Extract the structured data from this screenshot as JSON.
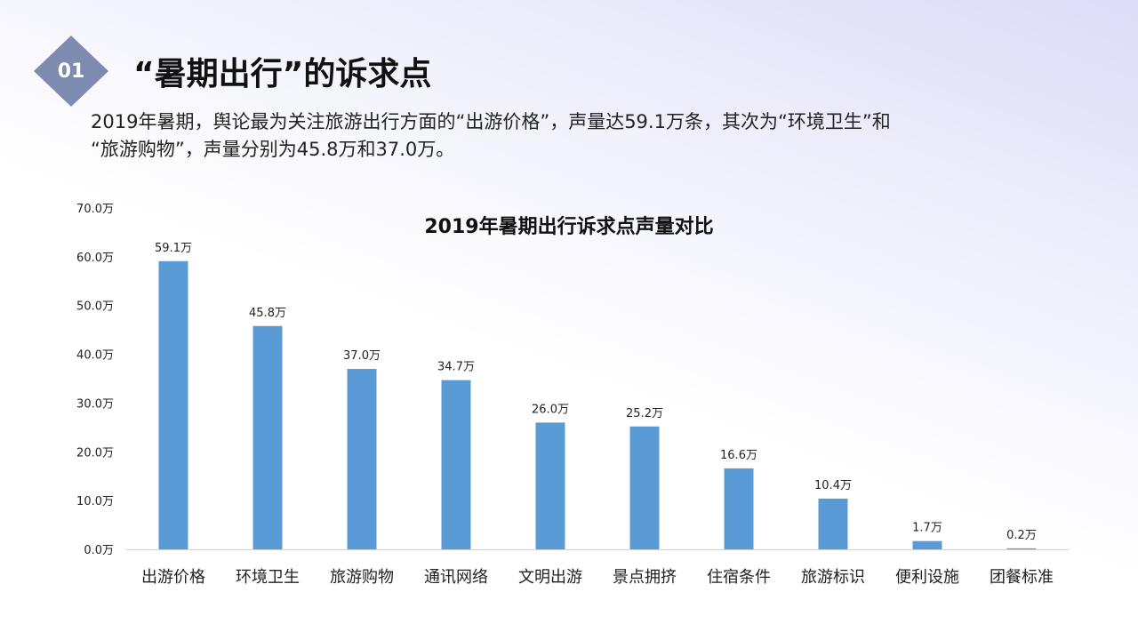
{
  "header": {
    "badge": "01",
    "title": "“暑期出行”的诉求点",
    "description_line1": "2019年暑期，舆论最为关注旅游出行方面的“出游价格”，声量达59.1万条，其次为“环境卫生”和",
    "description_line2": "“旅游购物”，声量分别为45.8万和37.0万。"
  },
  "colors": {
    "bar": "#5b9bd5",
    "badge": "#7d8bb0"
  },
  "chart_data": {
    "type": "bar",
    "title": "2019年暑期出行诉求点声量对比",
    "categories": [
      "出游价格",
      "环境卫生",
      "旅游购物",
      "通讯网络",
      "文明出游",
      "景点拥挤",
      "住宿条件",
      "旅游标识",
      "便利设施",
      "团餐标准"
    ],
    "values": [
      59.1,
      45.8,
      37.0,
      34.7,
      26.0,
      25.2,
      16.6,
      10.4,
      1.7,
      0.2
    ],
    "value_labels": [
      "59.1万",
      "45.8万",
      "37.0万",
      "34.7万",
      "26.0万",
      "25.2万",
      "16.6万",
      "10.4万",
      "1.7万",
      "0.2万"
    ],
    "ylim": [
      0,
      70
    ],
    "yticks": [
      0,
      10,
      20,
      30,
      40,
      50,
      60,
      70
    ],
    "ytick_labels": [
      "0.0万",
      "10.0万",
      "20.0万",
      "30.0万",
      "40.0万",
      "50.0万",
      "60.0万",
      "70.0万"
    ],
    "grid": false,
    "legend": "none"
  }
}
